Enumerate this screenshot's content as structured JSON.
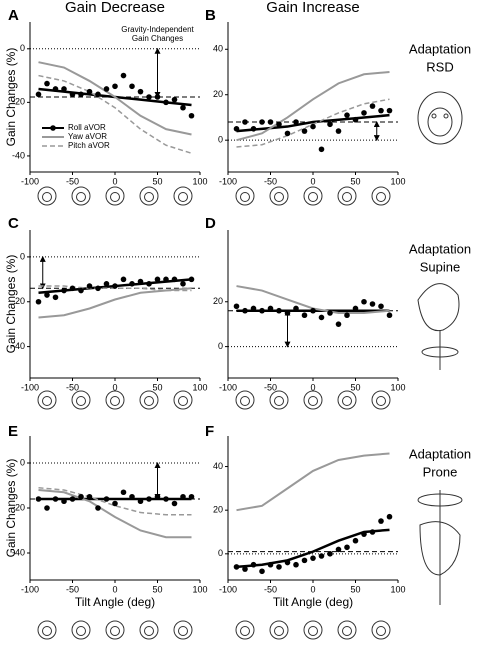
{
  "column_titles": [
    "Gain Decrease",
    "Gain Increase"
  ],
  "row_labels": [
    [
      "Adaptation",
      "RSD"
    ],
    [
      "Adaptation",
      "Supine"
    ],
    [
      "Adaptation",
      "Prone"
    ]
  ],
  "chart_data": [
    {
      "type": "scatter-fit",
      "panel": "A",
      "ylabel": "Gain Changes (%)",
      "xlim": [
        -100,
        100
      ],
      "xticks": [
        -100,
        -50,
        0,
        50,
        100
      ],
      "ylim": [
        -46,
        10
      ],
      "yticks": [
        -40,
        -20,
        0
      ],
      "reference": 0,
      "mean": -18,
      "arrow_x": 50,
      "legend": "lower-left",
      "annotation": [
        "Gravity-Independent",
        "Gain Changes"
      ],
      "points": {
        "color": "#000000",
        "x": [
          -90,
          -80,
          -70,
          -60,
          -50,
          -40,
          -30,
          -20,
          -10,
          0,
          10,
          20,
          30,
          40,
          50,
          60,
          70,
          80,
          90
        ],
        "values": [
          -17,
          -13,
          -15,
          -15,
          -17,
          -17,
          -16,
          -17,
          -15,
          -14,
          -10,
          -14,
          -16,
          -18,
          -18,
          -20,
          -19,
          -22,
          -25
        ]
      },
      "series": [
        {
          "name": "Roll aVOR",
          "color": "#000000",
          "width": 2.5,
          "x": [
            -90,
            -60,
            -30,
            0,
            30,
            60,
            90
          ],
          "values": [
            -15,
            -16,
            -17,
            -18,
            -19,
            -20,
            -21
          ]
        },
        {
          "name": "Yaw aVOR",
          "color": "#999999",
          "width": 2,
          "x": [
            -90,
            -60,
            -30,
            0,
            30,
            60,
            90
          ],
          "values": [
            -5,
            -7,
            -12,
            -18,
            -25,
            -30,
            -32
          ]
        },
        {
          "name": "Pitch aVOR",
          "color": "#999999",
          "width": 1.5,
          "dash": "5,3",
          "x": [
            -90,
            -60,
            -30,
            0,
            30,
            60,
            90
          ],
          "values": [
            -10,
            -12,
            -16,
            -22,
            -30,
            -36,
            -39
          ]
        }
      ]
    },
    {
      "type": "scatter-fit",
      "panel": "B",
      "xlim": [
        -100,
        100
      ],
      "xticks": [
        -100,
        -50,
        0,
        50,
        100
      ],
      "ylim": [
        -14,
        52
      ],
      "yticks": [
        0,
        20,
        40
      ],
      "reference": 0,
      "mean": 8,
      "arrow_x": 75,
      "points": {
        "color": "#000000",
        "x": [
          -90,
          -80,
          -70,
          -60,
          -50,
          -40,
          -30,
          -20,
          -10,
          0,
          10,
          20,
          30,
          40,
          50,
          60,
          70,
          80,
          90
        ],
        "values": [
          5,
          8,
          5,
          8,
          8,
          7,
          3,
          8,
          4,
          6,
          -4,
          7,
          4,
          11,
          9,
          12,
          15,
          13,
          13
        ]
      },
      "series": [
        {
          "color": "#000000",
          "width": 2.5,
          "x": [
            -90,
            -60,
            -30,
            0,
            30,
            60,
            90
          ],
          "values": [
            4,
            5,
            6,
            8,
            9,
            10,
            11
          ]
        },
        {
          "color": "#999999",
          "width": 2,
          "x": [
            -90,
            -60,
            -30,
            0,
            30,
            60,
            90
          ],
          "values": [
            0,
            3,
            10,
            18,
            25,
            29,
            30
          ]
        },
        {
          "color": "#999999",
          "width": 1.5,
          "dash": "5,3",
          "x": [
            -90,
            -60,
            -30,
            0,
            30,
            60,
            90
          ],
          "values": [
            -3,
            -2,
            2,
            7,
            12,
            16,
            18
          ]
        }
      ]
    },
    {
      "type": "scatter-fit",
      "panel": "C",
      "ylabel": "Gain Changes (%)",
      "xlim": [
        -100,
        100
      ],
      "xticks": [
        -100,
        -50,
        0,
        50,
        100
      ],
      "ylim": [
        -54,
        12
      ],
      "yticks": [
        -40,
        -20,
        0
      ],
      "reference": 0,
      "mean": -14,
      "arrow_x": -85,
      "points": {
        "color": "#000000",
        "x": [
          -90,
          -80,
          -70,
          -60,
          -50,
          -40,
          -30,
          -20,
          -10,
          0,
          10,
          20,
          30,
          40,
          50,
          60,
          70,
          80,
          90
        ],
        "values": [
          -20,
          -17,
          -18,
          -15,
          -14,
          -15,
          -13,
          -14,
          -12,
          -13,
          -10,
          -12,
          -11,
          -12,
          -10,
          -10,
          -10,
          -12,
          -10
        ]
      },
      "series": [
        {
          "color": "#000000",
          "width": 2.5,
          "x": [
            -90,
            -60,
            -30,
            0,
            30,
            60,
            90
          ],
          "values": [
            -16,
            -15,
            -14,
            -13,
            -12,
            -11,
            -10
          ]
        },
        {
          "color": "#999999",
          "width": 2,
          "x": [
            -90,
            -60,
            -30,
            0,
            30,
            60,
            90
          ],
          "values": [
            -27,
            -26,
            -23,
            -19,
            -16,
            -15,
            -14
          ]
        },
        {
          "color": "#999999",
          "width": 1.5,
          "dash": "5,3",
          "x": [
            -90,
            -60,
            -30,
            0,
            30,
            60,
            90
          ],
          "values": [
            -13,
            -13,
            -14,
            -14,
            -14,
            -15,
            -15
          ]
        }
      ]
    },
    {
      "type": "scatter-fit",
      "panel": "D",
      "xlim": [
        -100,
        100
      ],
      "xticks": [
        -100,
        -50,
        0,
        50,
        100
      ],
      "ylim": [
        -14,
        52
      ],
      "yticks": [
        0,
        20
      ],
      "reference": 0,
      "mean": 16,
      "arrow_x": -30,
      "points": {
        "color": "#000000",
        "x": [
          -90,
          -80,
          -70,
          -60,
          -50,
          -40,
          -30,
          -20,
          -10,
          0,
          10,
          20,
          30,
          40,
          50,
          60,
          70,
          80,
          90
        ],
        "values": [
          18,
          16,
          17,
          16,
          17,
          16,
          15,
          17,
          14,
          16,
          13,
          15,
          10,
          14,
          17,
          20,
          19,
          18,
          14
        ]
      },
      "series": [
        {
          "color": "#000000",
          "width": 2.5,
          "x": [
            -90,
            -60,
            -30,
            0,
            30,
            60,
            90
          ],
          "values": [
            16,
            16,
            16,
            16,
            16,
            16,
            16
          ]
        },
        {
          "color": "#999999",
          "width": 2,
          "x": [
            -90,
            -60,
            -30,
            0,
            30,
            60,
            90
          ],
          "values": [
            27,
            25,
            21,
            17,
            15,
            15,
            16
          ]
        }
      ]
    },
    {
      "type": "scatter-fit",
      "panel": "E",
      "ylabel": "Gain Changes (%)",
      "xlabel": "Tilt Angle (deg)",
      "xlim": [
        -100,
        100
      ],
      "xticks": [
        -100,
        -50,
        0,
        50,
        100
      ],
      "ylim": [
        -52,
        12
      ],
      "yticks": [
        -40,
        -20,
        0
      ],
      "reference": 0,
      "mean": -16,
      "arrow_x": 50,
      "points": {
        "color": "#000000",
        "x": [
          -90,
          -80,
          -70,
          -60,
          -50,
          -40,
          -30,
          -20,
          -10,
          0,
          10,
          20,
          30,
          40,
          50,
          60,
          70,
          80,
          90
        ],
        "values": [
          -16,
          -20,
          -16,
          -17,
          -16,
          -15,
          -15,
          -20,
          -16,
          -18,
          -13,
          -15,
          -17,
          -16,
          -15,
          -16,
          -18,
          -15,
          -15
        ]
      },
      "series": [
        {
          "color": "#000000",
          "width": 2.5,
          "x": [
            -90,
            -60,
            -30,
            0,
            30,
            60,
            90
          ],
          "values": [
            -16,
            -16,
            -16,
            -16,
            -16,
            -16,
            -16
          ]
        },
        {
          "color": "#999999",
          "width": 2,
          "x": [
            -90,
            -60,
            -30,
            0,
            30,
            60,
            90
          ],
          "values": [
            -12,
            -13,
            -17,
            -24,
            -30,
            -33,
            -33
          ]
        },
        {
          "color": "#999999",
          "width": 1.5,
          "dash": "5,3",
          "x": [
            -90,
            -60,
            -30,
            0,
            30,
            60,
            90
          ],
          "values": [
            -11,
            -12,
            -15,
            -19,
            -22,
            -23,
            -23
          ]
        }
      ]
    },
    {
      "type": "scatter-fit",
      "panel": "F",
      "xlabel": "Tilt Angle (deg)",
      "xlim": [
        -100,
        100
      ],
      "xticks": [
        -100,
        -50,
        0,
        50,
        100
      ],
      "ylim": [
        -12,
        54
      ],
      "yticks": [
        0,
        20,
        40
      ],
      "reference": 0,
      "mean": 1,
      "points": {
        "color": "#000000",
        "x": [
          -90,
          -80,
          -70,
          -60,
          -50,
          -40,
          -30,
          -20,
          -10,
          0,
          10,
          20,
          30,
          40,
          50,
          60,
          70,
          80,
          90
        ],
        "values": [
          -6,
          -7,
          -5,
          -8,
          -5,
          -6,
          -4,
          -5,
          -3,
          -2,
          -1,
          0,
          2,
          3,
          6,
          9,
          10,
          15,
          17
        ]
      },
      "series": [
        {
          "color": "#000000",
          "width": 2.5,
          "x": [
            -90,
            -60,
            -30,
            0,
            30,
            60,
            90
          ],
          "values": [
            -6,
            -5,
            -3,
            1,
            6,
            10,
            11
          ]
        },
        {
          "color": "#999999",
          "width": 2,
          "x": [
            -90,
            -60,
            -30,
            0,
            30,
            60,
            90
          ],
          "values": [
            20,
            22,
            30,
            38,
            43,
            45,
            46
          ]
        }
      ]
    }
  ]
}
